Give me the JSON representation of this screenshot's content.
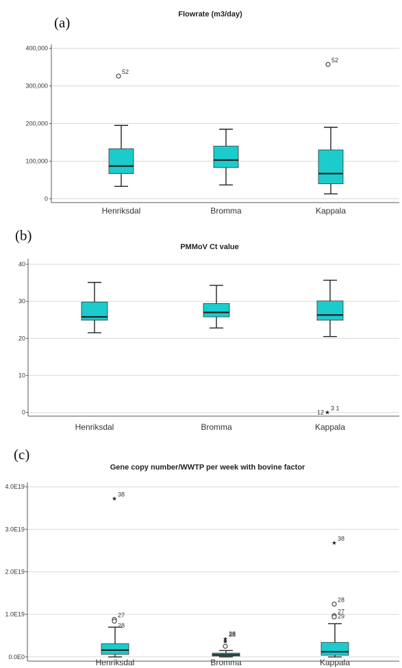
{
  "colors": {
    "box": "#1ccccc",
    "median": "#222222",
    "grid": "#d9d9d9",
    "axis": "#555555"
  },
  "chart_data": [
    {
      "type": "box",
      "panel_label": "(a)",
      "title": "Flowrate (m3/day)",
      "categories": [
        "Henriksdal",
        "Bromma",
        "Kappala"
      ],
      "ylim": [
        -10000,
        410000
      ],
      "y_ticks": [
        0,
        100000,
        200000,
        300000,
        400000
      ],
      "y_tick_labels": [
        "0",
        "100,000",
        "200,000",
        "300,000",
        "400,000"
      ],
      "grid": true,
      "boxes": [
        {
          "category": "Henriksdal",
          "whisker_low": 33000,
          "q1": 67000,
          "median": 87000,
          "q3": 133000,
          "whisker_high": 195000,
          "outliers": [
            {
              "value": 326000,
              "marker": "circle",
              "label": "52"
            }
          ]
        },
        {
          "category": "Bromma",
          "whisker_low": 37000,
          "q1": 83000,
          "median": 103000,
          "q3": 140000,
          "whisker_high": 185000,
          "outliers": []
        },
        {
          "category": "Kappala",
          "whisker_low": 13000,
          "q1": 40000,
          "median": 67000,
          "q3": 130000,
          "whisker_high": 190000,
          "outliers": [
            {
              "value": 357000,
              "marker": "circle",
              "label": "52"
            }
          ]
        }
      ]
    },
    {
      "type": "box",
      "panel_label": "(b)",
      "title": "PMMoV Ct value",
      "categories": [
        "Henriksdal",
        "Bromma",
        "Kappala"
      ],
      "ylim": [
        -1,
        41.5
      ],
      "y_ticks": [
        0,
        10,
        20,
        30,
        40
      ],
      "y_tick_labels": [
        "0",
        "10",
        "20",
        "30",
        "40"
      ],
      "grid": true,
      "boxes": [
        {
          "category": "Henriksdal",
          "whisker_low": 21.5,
          "q1": 24.9,
          "median": 25.8,
          "q3": 29.8,
          "whisker_high": 35.1,
          "outliers": []
        },
        {
          "category": "Bromma",
          "whisker_low": 22.8,
          "q1": 25.8,
          "median": 27.0,
          "q3": 29.4,
          "whisker_high": 34.3,
          "outliers": []
        },
        {
          "category": "Kappala",
          "whisker_low": 20.5,
          "q1": 24.9,
          "median": 26.3,
          "q3": 30.1,
          "whisker_high": 35.7,
          "outliers": [
            {
              "value": 0,
              "marker": "star",
              "label": "3  1",
              "label2": "12"
            }
          ]
        }
      ]
    },
    {
      "type": "box",
      "panel_label": "(c)",
      "title": "Gene copy number/WWTP per week with bovine factor",
      "categories": [
        "Henriksdal",
        "Bromma",
        "Kappala"
      ],
      "ylim": [
        -1e+18,
        4.1e+19
      ],
      "y_ticks": [
        0,
        1e+19,
        2e+19,
        3e+19,
        4e+19
      ],
      "y_tick_labels": [
        "0.0E0",
        "1.0E19",
        "2.0E19",
        "3.0E19",
        "4.0E19"
      ],
      "grid": true,
      "boxes": [
        {
          "category": "Henriksdal",
          "whisker_low": 0,
          "q1": 6e+17,
          "median": 1.6e+18,
          "q3": 3.1e+18,
          "whisker_high": 7e+18,
          "outliers": [
            {
              "value": 3.72e+19,
              "marker": "star",
              "label": "38"
            },
            {
              "value": 8.8e+18,
              "marker": "circle",
              "label": "27"
            },
            {
              "value": 8.4e+18,
              "marker": "circle",
              "label": ""
            },
            {
              "value": 6.4e+18,
              "marker": "none",
              "label": "28"
            }
          ]
        },
        {
          "category": "Bromma",
          "whisker_low": 0,
          "q1": 2e+17,
          "median": 5e+17,
          "q3": 9e+17,
          "whisker_high": 1.5e+18,
          "outliers": [
            {
              "value": 4.2e+18,
              "marker": "star",
              "label": "38"
            },
            {
              "value": 3.6e+18,
              "marker": "star",
              "label": ""
            },
            {
              "value": 2.5e+18,
              "marker": "circle",
              "label": ""
            },
            {
              "value": 4.5e+18,
              "marker": "none",
              "label": "28"
            }
          ]
        },
        {
          "category": "Kappala",
          "whisker_low": 0,
          "q1": 4e+17,
          "median": 1.2e+18,
          "q3": 3.4e+18,
          "whisker_high": 7.8e+18,
          "outliers": [
            {
              "value": 2.68e+19,
              "marker": "star",
              "label": "38"
            },
            {
              "value": 1.24e+19,
              "marker": "circle",
              "label": "28"
            },
            {
              "value": 9.7e+18,
              "marker": "circle",
              "label": "27"
            },
            {
              "value": 9.4e+18,
              "marker": "circle",
              "label": ""
            },
            {
              "value": 8.6e+18,
              "marker": "none",
              "label": "29"
            }
          ]
        }
      ]
    }
  ]
}
